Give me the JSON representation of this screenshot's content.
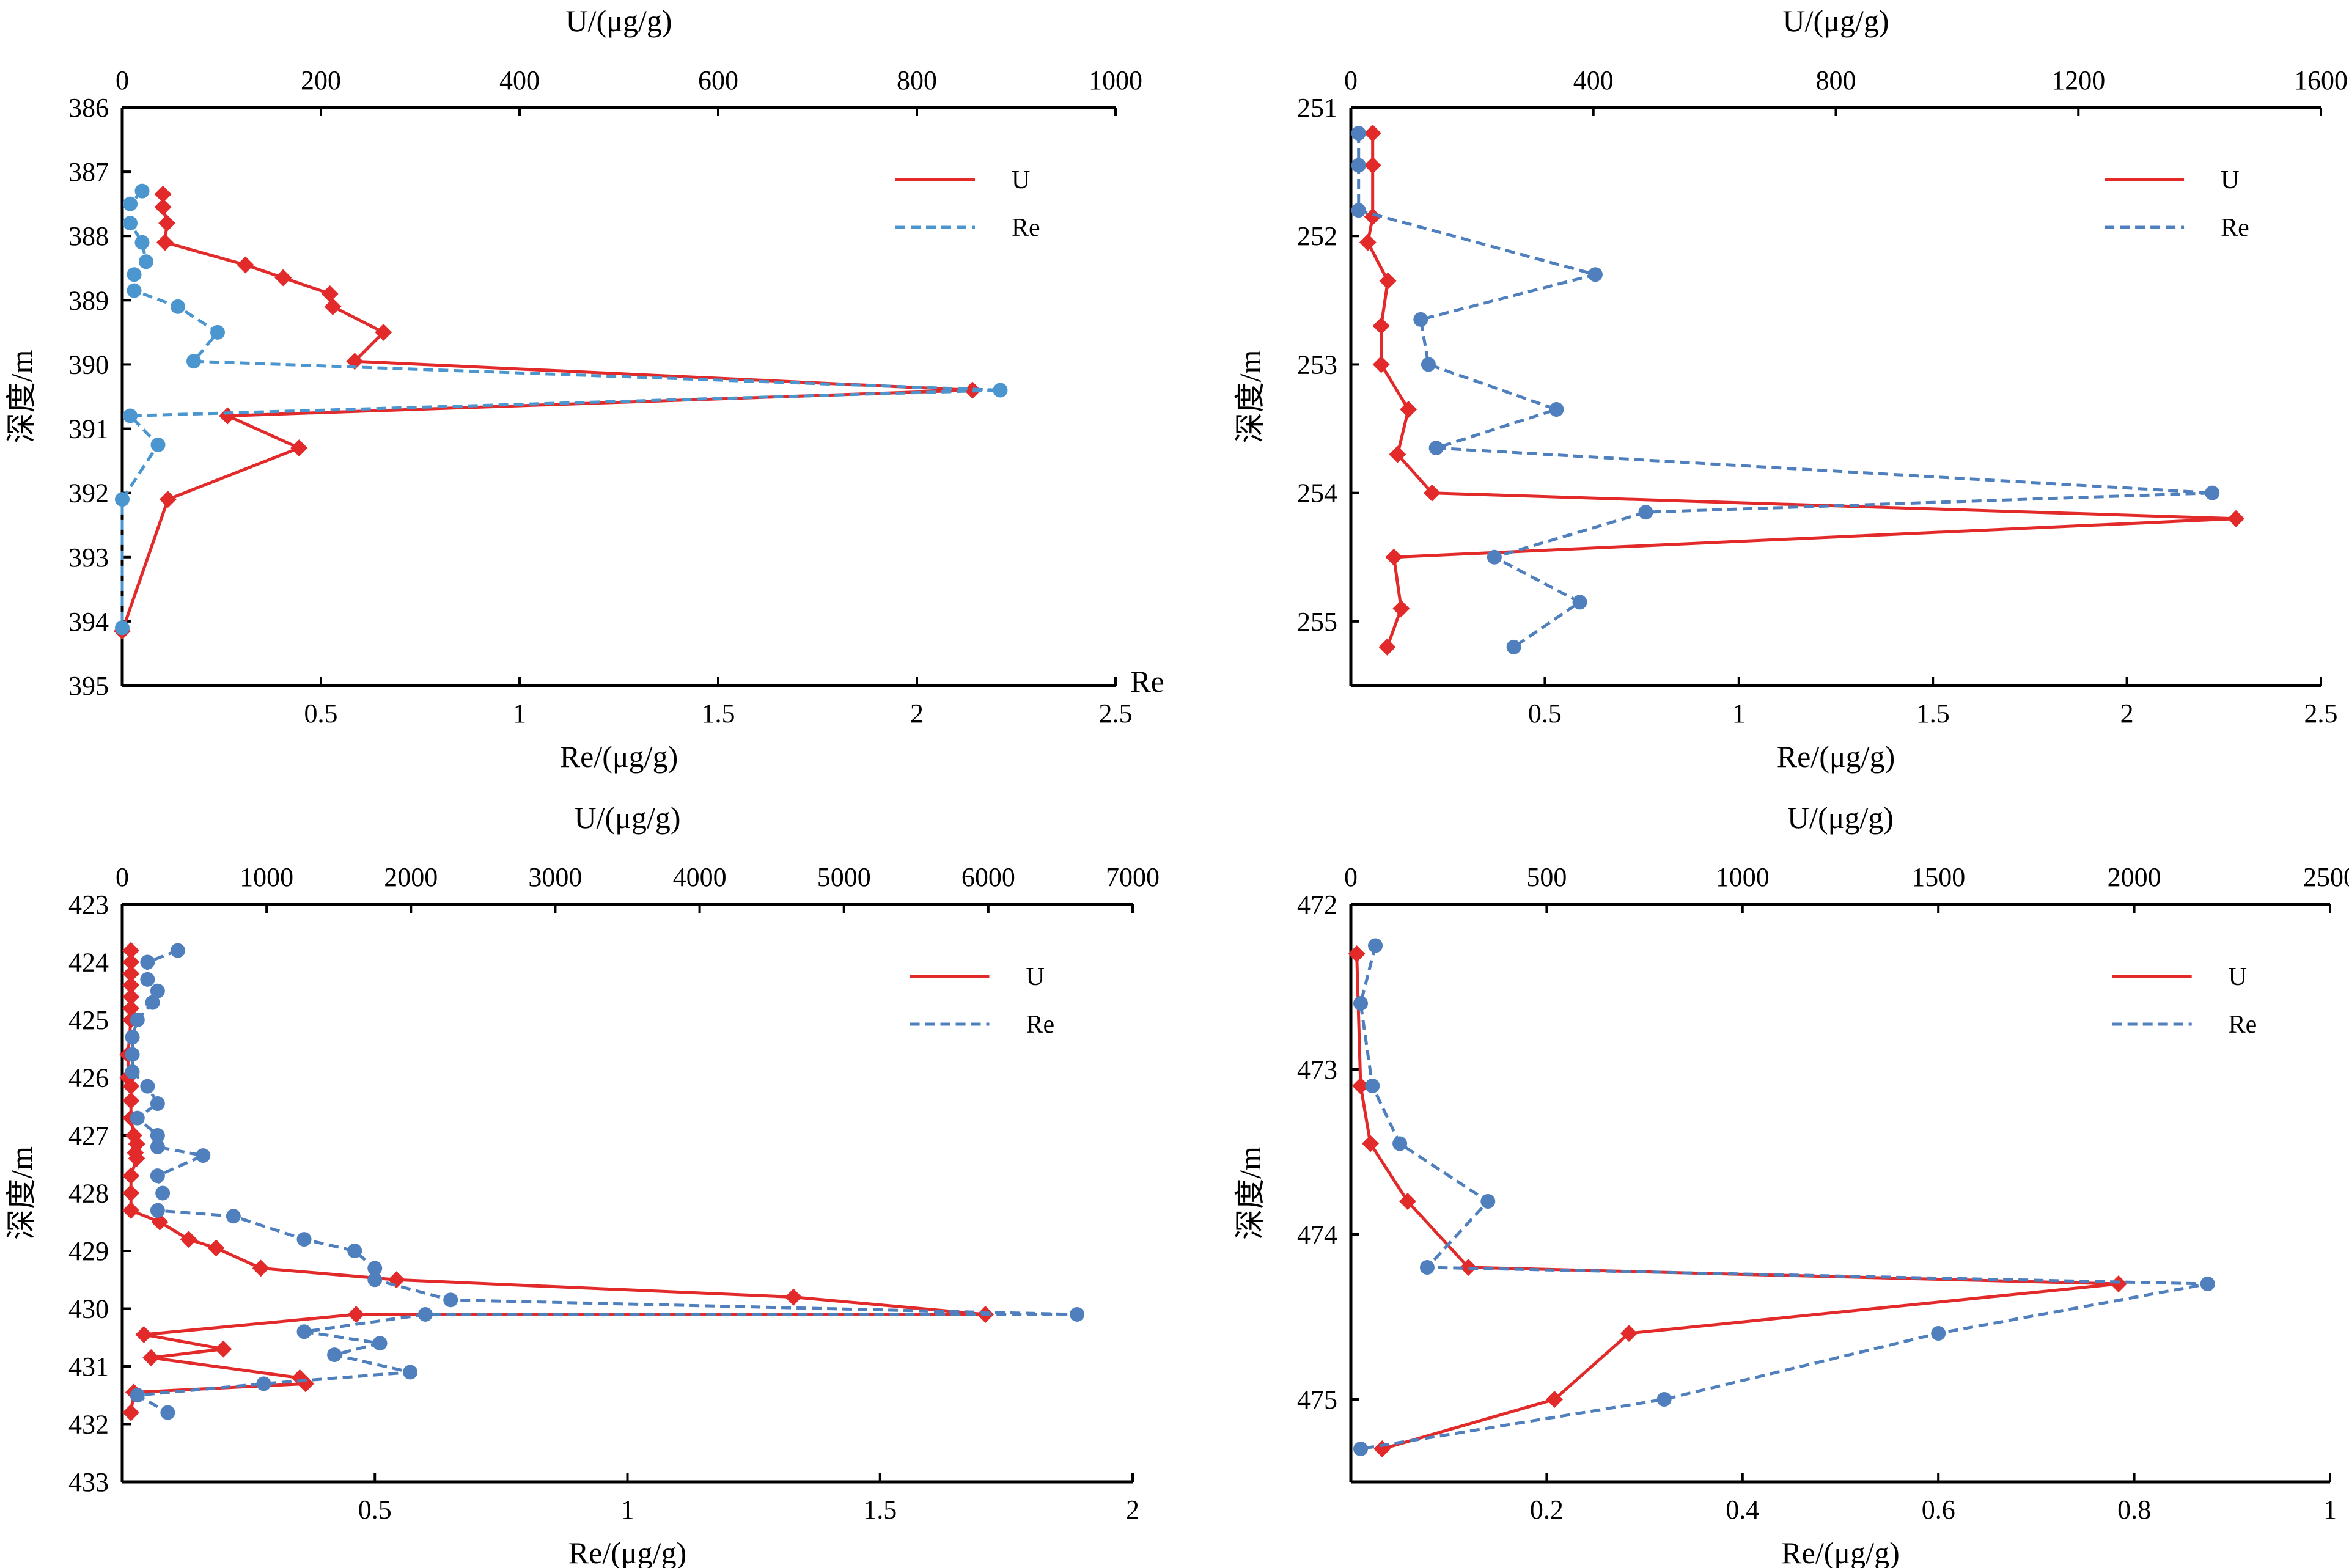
{
  "colors": {
    "U": "#e32a2a",
    "Re": "#4f7fbd",
    "Re_panel1": "#4b96cf",
    "axis": "#000000"
  },
  "chart_data": [
    {
      "type": "line",
      "panel": "top-left",
      "top_axis": {
        "label": "U/(μg/g)",
        "ticks": [
          0,
          200,
          400,
          600,
          800,
          1000
        ],
        "range": [
          0,
          1000
        ]
      },
      "bottom_axis": {
        "label": "Re/(μg/g)",
        "ticks": [
          0.5,
          1,
          1.5,
          2,
          2.5
        ],
        "range": [
          0,
          2.5
        ],
        "end_label": "Re"
      },
      "y_axis": {
        "label": "深度/m",
        "ticks": [
          386,
          387,
          388,
          389,
          390,
          391,
          392,
          393,
          394,
          395
        ],
        "range": [
          386,
          395
        ],
        "inverted": true
      },
      "legend": [
        "U",
        "Re"
      ],
      "legend_position": "top-right",
      "series": [
        {
          "name": "U",
          "axis": "top",
          "style": "solid",
          "marker": "diamond",
          "points": [
            [
              41,
              387.35
            ],
            [
              41,
              387.55
            ],
            [
              45,
              387.8
            ],
            [
              43,
              388.1
            ],
            [
              124,
              388.45
            ],
            [
              162,
              388.65
            ],
            [
              209,
              388.9
            ],
            [
              212,
              389.1
            ],
            [
              263,
              389.5
            ],
            [
              234,
              389.95
            ],
            [
              856,
              390.4
            ],
            [
              106,
              390.8
            ],
            [
              178,
              391.3
            ],
            [
              46,
              392.1
            ],
            [
              0,
              394.15
            ]
          ]
        },
        {
          "name": "Re",
          "axis": "bottom",
          "style": "dashed",
          "marker": "circle",
          "points": [
            [
              0.05,
              387.3
            ],
            [
              0.02,
              387.5
            ],
            [
              0.02,
              387.8
            ],
            [
              0.05,
              388.1
            ],
            [
              0.06,
              388.4
            ],
            [
              0.03,
              388.6
            ],
            [
              0.03,
              388.85
            ],
            [
              0.14,
              389.1
            ],
            [
              0.24,
              389.5
            ],
            [
              0.18,
              389.95
            ],
            [
              2.21,
              390.4
            ],
            [
              0.02,
              390.8
            ],
            [
              0.09,
              391.25
            ],
            [
              0.0,
              392.1
            ],
            [
              0.0,
              394.1
            ]
          ]
        }
      ]
    },
    {
      "type": "line",
      "panel": "top-right",
      "top_axis": {
        "label": "U/(μg/g)",
        "ticks": [
          0,
          400,
          800,
          1200,
          1600
        ],
        "range": [
          0,
          1600
        ]
      },
      "bottom_axis": {
        "label": "Re/(μg/g)",
        "ticks": [
          0.5,
          1,
          1.5,
          2,
          2.5
        ],
        "range": [
          0,
          2.5
        ]
      },
      "y_axis": {
        "label": "深度/m",
        "ticks": [
          251,
          252,
          253,
          254,
          255
        ],
        "range": [
          251,
          255.5
        ],
        "inverted": true
      },
      "legend": [
        "U",
        "Re"
      ],
      "legend_position": "top-right",
      "series": [
        {
          "name": "U",
          "axis": "top",
          "style": "solid",
          "marker": "diamond",
          "points": [
            [
              36,
              251.2
            ],
            [
              36,
              251.45
            ],
            [
              36,
              251.85
            ],
            [
              28,
              252.05
            ],
            [
              61,
              252.35
            ],
            [
              50,
              252.7
            ],
            [
              50,
              253.0
            ],
            [
              95,
              253.35
            ],
            [
              77,
              253.7
            ],
            [
              134,
              254.0
            ],
            [
              1460,
              254.2
            ],
            [
              71,
              254.5
            ],
            [
              83,
              254.9
            ],
            [
              60,
              255.2
            ]
          ]
        },
        {
          "name": "Re",
          "axis": "bottom",
          "style": "dashed",
          "marker": "circle",
          "points": [
            [
              0.02,
              251.2
            ],
            [
              0.02,
              251.45
            ],
            [
              0.02,
              251.8
            ],
            [
              0.63,
              252.3
            ],
            [
              0.18,
              252.65
            ],
            [
              0.2,
              253.0
            ],
            [
              0.53,
              253.35
            ],
            [
              0.22,
              253.65
            ],
            [
              2.22,
              254.0
            ],
            [
              0.76,
              254.15
            ],
            [
              0.37,
              254.5
            ],
            [
              0.59,
              254.85
            ],
            [
              0.42,
              255.2
            ]
          ]
        }
      ]
    },
    {
      "type": "line",
      "panel": "bottom-left",
      "top_axis": {
        "label": "U/(μg/g)",
        "ticks": [
          0,
          1000,
          2000,
          3000,
          4000,
          5000,
          6000,
          7000
        ],
        "range": [
          0,
          7000
        ]
      },
      "bottom_axis": {
        "label": "Re/(μg/g)",
        "ticks": [
          0.5,
          1,
          1.5,
          2
        ],
        "range": [
          0,
          2
        ]
      },
      "y_axis": {
        "label": "深度/m",
        "ticks": [
          423,
          424,
          425,
          426,
          427,
          428,
          429,
          430,
          431,
          432,
          433
        ],
        "range": [
          423,
          433
        ],
        "inverted": true
      },
      "legend": [
        "U",
        "Re"
      ],
      "legend_position": "top-right",
      "series": [
        {
          "name": "U",
          "axis": "top",
          "style": "solid",
          "marker": "diamond",
          "points": [
            [
              60,
              423.8
            ],
            [
              60,
              424.0
            ],
            [
              60,
              424.2
            ],
            [
              60,
              424.4
            ],
            [
              60,
              424.6
            ],
            [
              60,
              424.8
            ],
            [
              60,
              425.0
            ],
            [
              40,
              425.6
            ],
            [
              40,
              426.0
            ],
            [
              60,
              426.15
            ],
            [
              60,
              426.4
            ],
            [
              60,
              426.7
            ],
            [
              80,
              427.0
            ],
            [
              100,
              427.15
            ],
            [
              90,
              427.3
            ],
            [
              100,
              427.4
            ],
            [
              60,
              427.7
            ],
            [
              60,
              428.0
            ],
            [
              60,
              428.3
            ],
            [
              260,
              428.5
            ],
            [
              460,
              428.8
            ],
            [
              650,
              428.95
            ],
            [
              960,
              429.3
            ],
            [
              1900,
              429.5
            ],
            [
              4650,
              429.8
            ],
            [
              5980,
              430.1
            ],
            [
              1620,
              430.1
            ],
            [
              150,
              430.45
            ],
            [
              700,
              430.7
            ],
            [
              200,
              430.85
            ],
            [
              1230,
              431.2
            ],
            [
              1270,
              431.3
            ],
            [
              80,
              431.45
            ],
            [
              60,
              431.8
            ]
          ]
        },
        {
          "name": "Re",
          "axis": "bottom",
          "style": "dashed",
          "marker": "circle",
          "points": [
            [
              0.11,
              423.8
            ],
            [
              0.05,
              424.0
            ],
            [
              0.05,
              424.3
            ],
            [
              0.07,
              424.5
            ],
            [
              0.06,
              424.7
            ],
            [
              0.03,
              425.0
            ],
            [
              0.02,
              425.3
            ],
            [
              0.02,
              425.6
            ],
            [
              0.02,
              425.9
            ],
            [
              0.05,
              426.15
            ],
            [
              0.07,
              426.45
            ],
            [
              0.03,
              426.7
            ],
            [
              0.07,
              427.0
            ],
            [
              0.07,
              427.2
            ],
            [
              0.16,
              427.35
            ],
            [
              0.07,
              427.7
            ],
            [
              0.08,
              428.0
            ],
            [
              0.07,
              428.3
            ],
            [
              0.22,
              428.4
            ],
            [
              0.36,
              428.8
            ],
            [
              0.46,
              429.0
            ],
            [
              0.5,
              429.3
            ],
            [
              0.5,
              429.5
            ],
            [
              0.65,
              429.85
            ],
            [
              1.89,
              430.1
            ],
            [
              0.6,
              430.1
            ],
            [
              0.36,
              430.4
            ],
            [
              0.51,
              430.6
            ],
            [
              0.42,
              430.8
            ],
            [
              0.57,
              431.1
            ],
            [
              0.28,
              431.3
            ],
            [
              0.03,
              431.5
            ],
            [
              0.09,
              431.8
            ]
          ]
        }
      ]
    },
    {
      "type": "line",
      "panel": "bottom-right",
      "top_axis": {
        "label": "U/(μg/g)",
        "ticks": [
          0,
          500,
          1000,
          1500,
          2000,
          2500
        ],
        "range": [
          0,
          2500
        ]
      },
      "bottom_axis": {
        "label": "Re/(μg/g)",
        "ticks": [
          0.2,
          0.4,
          0.6,
          0.8,
          1
        ],
        "range": [
          0,
          1
        ]
      },
      "y_axis": {
        "label": "深度/m",
        "ticks": [
          472,
          473,
          474,
          475
        ],
        "range": [
          472,
          475.5
        ],
        "inverted": true
      },
      "legend": [
        "U",
        "Re"
      ],
      "legend_position": "top-right",
      "series": [
        {
          "name": "U",
          "axis": "top",
          "style": "solid",
          "marker": "diamond",
          "points": [
            [
              15,
              472.3
            ],
            [
              25,
              473.1
            ],
            [
              50,
              473.45
            ],
            [
              145,
              473.8
            ],
            [
              300,
              474.2
            ],
            [
              1960,
              474.3
            ],
            [
              710,
              474.6
            ],
            [
              520,
              475.0
            ],
            [
              80,
              475.3
            ]
          ]
        },
        {
          "name": "Re",
          "axis": "bottom",
          "style": "dashed",
          "marker": "circle",
          "points": [
            [
              0.025,
              472.25
            ],
            [
              0.01,
              472.6
            ],
            [
              0.022,
              473.1
            ],
            [
              0.05,
              473.45
            ],
            [
              0.14,
              473.8
            ],
            [
              0.078,
              474.2
            ],
            [
              0.875,
              474.3
            ],
            [
              0.6,
              474.6
            ],
            [
              0.32,
              475.0
            ],
            [
              0.01,
              475.3
            ]
          ]
        }
      ]
    }
  ]
}
